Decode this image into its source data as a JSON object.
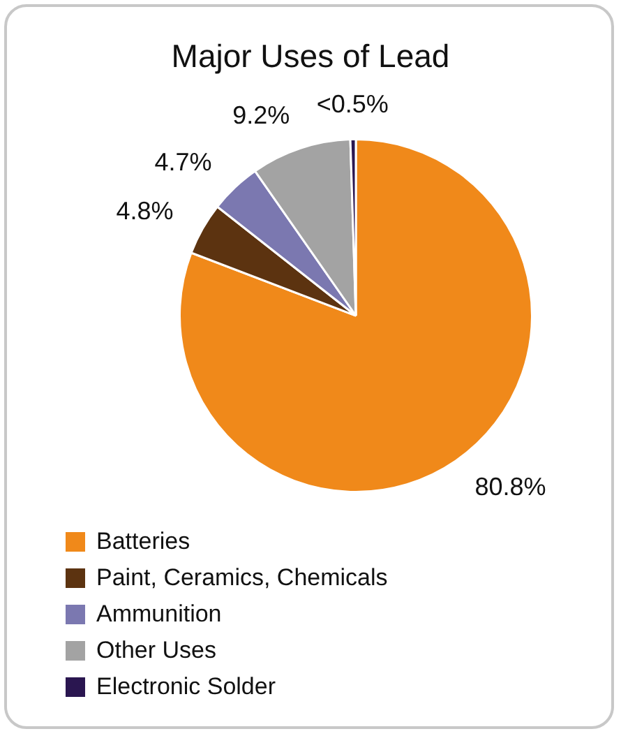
{
  "chart_data": {
    "type": "pie",
    "title": "Major Uses of Lead",
    "categories": [
      "Batteries",
      "Paint, Ceramics, Chemicals",
      "Ammunition",
      "Other Uses",
      "Electronic Solder"
    ],
    "values": [
      80.8,
      4.8,
      4.7,
      9.2,
      0.5
    ],
    "value_labels": [
      "80.8%",
      "4.8%",
      "4.7%",
      "9.2%",
      "<0.5%"
    ],
    "colors": [
      "#f0891a",
      "#5c3310",
      "#7b78b0",
      "#a3a3a3",
      "#2a1650"
    ],
    "legend": "bottom left"
  }
}
